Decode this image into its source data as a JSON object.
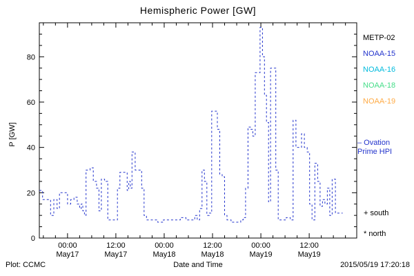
{
  "footer": {
    "credit": "Plot: CCMC",
    "timestamp": "2015/05/19 17:20:18"
  },
  "legend": {
    "satellites": [
      {
        "label": "METP-02",
        "color": "#000000"
      },
      {
        "label": "NOAA-15",
        "color": "#2233cc"
      },
      {
        "label": "NOAA-16",
        "color": "#00bbdd"
      },
      {
        "label": "NOAA-18",
        "color": "#44dd88"
      },
      {
        "label": "NOAA-19",
        "color": "#ffaa44"
      }
    ],
    "model_line1": "– Ovation",
    "model_line2": "Prime HPI",
    "model_color": "#2233cc",
    "south_label": "+ south",
    "north_label": "* north"
  },
  "chart_data": {
    "type": "line",
    "style": "step-after, dashed",
    "title": "Hemispheric Power [GW]",
    "xlabel": "Date and Time",
    "ylabel": "P [GW]",
    "ylim": [
      0,
      95
    ],
    "yticks": [
      0,
      20,
      40,
      60,
      80
    ],
    "xlim_hours": [
      0,
      78.8
    ],
    "xticks": [
      {
        "hours": 7,
        "time": "00:00",
        "date": "May17"
      },
      {
        "hours": 19,
        "time": "12:00",
        "date": "May17"
      },
      {
        "hours": 31,
        "time": "00:00",
        "date": "May18"
      },
      {
        "hours": 43,
        "time": "12:00",
        "date": "May18"
      },
      {
        "hours": 55,
        "time": "00:00",
        "date": "May19"
      },
      {
        "hours": 67,
        "time": "12:00",
        "date": "May19"
      }
    ],
    "line_color": "#2233cc",
    "grid": false,
    "legend_position": "right-outside",
    "series": [
      {
        "name": "Ovation Prime HPI",
        "points": [
          [
            0,
            21
          ],
          [
            0.8,
            17
          ],
          [
            2.0,
            17
          ],
          [
            2.8,
            10
          ],
          [
            3.6,
            17
          ],
          [
            4.4,
            13
          ],
          [
            5.0,
            20
          ],
          [
            6.0,
            20
          ],
          [
            7.0,
            15
          ],
          [
            7.8,
            17
          ],
          [
            8.6,
            18
          ],
          [
            9.4,
            15
          ],
          [
            10.0,
            13
          ],
          [
            10.4,
            15
          ],
          [
            10.8,
            12
          ],
          [
            11.2,
            10
          ],
          [
            11.6,
            30
          ],
          [
            12.6,
            31
          ],
          [
            13.4,
            25
          ],
          [
            14.2,
            22
          ],
          [
            14.8,
            12
          ],
          [
            15.4,
            26
          ],
          [
            16.2,
            25
          ],
          [
            17.0,
            8
          ],
          [
            18.4,
            8
          ],
          [
            19.4,
            22
          ],
          [
            20.0,
            29
          ],
          [
            21.0,
            29
          ],
          [
            21.8,
            21
          ],
          [
            22.2,
            25
          ],
          [
            22.6,
            22
          ],
          [
            23.0,
            38
          ],
          [
            23.8,
            30
          ],
          [
            24.6,
            30
          ],
          [
            25.4,
            22
          ],
          [
            26.0,
            10
          ],
          [
            26.6,
            8
          ],
          [
            28.0,
            8
          ],
          [
            29.4,
            7
          ],
          [
            30.8,
            8
          ],
          [
            32.2,
            8
          ],
          [
            33.6,
            8
          ],
          [
            35.0,
            9
          ],
          [
            36.4,
            8
          ],
          [
            37.8,
            8
          ],
          [
            38.6,
            10
          ],
          [
            39.2,
            8
          ],
          [
            39.8,
            13
          ],
          [
            40.4,
            30
          ],
          [
            41.0,
            25
          ],
          [
            41.6,
            10
          ],
          [
            42.2,
            11
          ],
          [
            42.8,
            56
          ],
          [
            43.6,
            56
          ],
          [
            44.2,
            48
          ],
          [
            44.8,
            28
          ],
          [
            45.4,
            27
          ],
          [
            46.0,
            10
          ],
          [
            46.6,
            8
          ],
          [
            47.6,
            7
          ],
          [
            48.8,
            7
          ],
          [
            50.0,
            8
          ],
          [
            50.6,
            9
          ],
          [
            51.2,
            22
          ],
          [
            51.8,
            49
          ],
          [
            52.4,
            48
          ],
          [
            53.0,
            45
          ],
          [
            53.6,
            73
          ],
          [
            54.2,
            73
          ],
          [
            54.8,
            93
          ],
          [
            55.4,
            80
          ],
          [
            55.9,
            63
          ],
          [
            56.4,
            51
          ],
          [
            56.9,
            16
          ],
          [
            57.4,
            75
          ],
          [
            58.1,
            75
          ],
          [
            58.7,
            30
          ],
          [
            59.3,
            8
          ],
          [
            60.3,
            8
          ],
          [
            61.3,
            9
          ],
          [
            62.3,
            8
          ],
          [
            63.0,
            52
          ],
          [
            63.7,
            40
          ],
          [
            64.4,
            40
          ],
          [
            65.1,
            46
          ],
          [
            65.8,
            40
          ],
          [
            66.5,
            38
          ],
          [
            67.1,
            15
          ],
          [
            67.7,
            8
          ],
          [
            68.4,
            33
          ],
          [
            69.1,
            25
          ],
          [
            69.7,
            14
          ],
          [
            70.3,
            17
          ],
          [
            70.9,
            15
          ],
          [
            71.5,
            22
          ],
          [
            72.1,
            10
          ],
          [
            72.7,
            26
          ],
          [
            73.5,
            11
          ],
          [
            74.3,
            11
          ]
        ]
      }
    ]
  }
}
